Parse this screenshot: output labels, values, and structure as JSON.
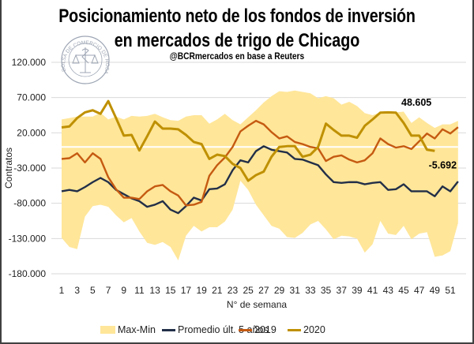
{
  "title_line1": "Posicionamiento neto de los fondos de inversión",
  "title_line2": "en mercados de trigo de Chicago",
  "subtitle": "@BCRmercados  en base a Reuters",
  "logo_text": "BOLSA DE COMERCIO DE ROSARIO",
  "colors": {
    "band": "#FFE699",
    "promedio": "#222F48",
    "y2019": "#C55A11",
    "y2020": "#BF9000",
    "zero_line": "#FFFFFF",
    "grid": "#D9D9D9",
    "frame": "#404040"
  },
  "chart_data": {
    "type": "line",
    "title": "Posicionamiento neto de los fondos de inversión en mercados de trigo de Chicago",
    "subtitle": "@BCRmercados  en base a Reuters",
    "xlabel": "N° de semana",
    "ylabel": "Contratos",
    "x": [
      1,
      2,
      3,
      4,
      5,
      6,
      7,
      8,
      9,
      10,
      11,
      12,
      13,
      14,
      15,
      16,
      17,
      18,
      19,
      20,
      21,
      22,
      23,
      24,
      25,
      26,
      27,
      28,
      29,
      30,
      31,
      32,
      33,
      34,
      35,
      36,
      37,
      38,
      39,
      40,
      41,
      42,
      43,
      44,
      45,
      46,
      47,
      48,
      49,
      50,
      51,
      52
    ],
    "x_tick_labels": [
      "1",
      "3",
      "5",
      "7",
      "9",
      "11",
      "13",
      "15",
      "17",
      "19",
      "21",
      "23",
      "25",
      "27",
      "29",
      "31",
      "33",
      "35",
      "37",
      "39",
      "41",
      "43",
      "45",
      "47",
      "49",
      "51"
    ],
    "ylim": [
      -180000,
      120000
    ],
    "y_ticks": [
      120000,
      70000,
      20000,
      -30000,
      -80000,
      -130000,
      -180000
    ],
    "y_tick_labels": [
      "120.000",
      "70.000",
      "20.000",
      "-30.000",
      "-80.000",
      "-130.000",
      "-180.000"
    ],
    "grid": true,
    "legend_position": "bottom",
    "band": {
      "name": "Max-Min",
      "upper": [
        39000,
        41000,
        43000,
        43000,
        43000,
        48500,
        39000,
        43000,
        39000,
        44000,
        43000,
        44000,
        47000,
        42000,
        38000,
        37000,
        43000,
        45000,
        45000,
        33000,
        39000,
        47000,
        38000,
        32000,
        42000,
        52000,
        63000,
        72000,
        79000,
        78000,
        80000,
        78000,
        76000,
        69000,
        72000,
        69000,
        60000,
        64000,
        58000,
        48000,
        45000,
        49000,
        49000,
        49000,
        50000,
        34000,
        42000,
        34000,
        27000,
        32000,
        32000,
        37000
      ],
      "lower": [
        -129000,
        -142000,
        -145000,
        -99000,
        -84000,
        -82000,
        -85000,
        -97000,
        -107000,
        -101000,
        -120000,
        -136000,
        -139000,
        -135000,
        -142000,
        -161000,
        -126000,
        -112000,
        -120000,
        -114000,
        -114000,
        -106000,
        -89000,
        -48000,
        -61000,
        -82000,
        -97000,
        -112000,
        -116000,
        -128000,
        -129000,
        -122000,
        -110000,
        -105000,
        -117000,
        -131000,
        -126000,
        -127000,
        -130000,
        -150000,
        -138000,
        -105000,
        -123000,
        -125000,
        -112000,
        -131000,
        -123000,
        -121000,
        -156000,
        -154000,
        -148000,
        -108000
      ]
    },
    "series": [
      {
        "name": "Promedio últ. 5 años",
        "key": "promedio",
        "values": [
          -63000,
          -61000,
          -63000,
          -57000,
          -50000,
          -44000,
          -50000,
          -61000,
          -67000,
          -73000,
          -77000,
          -85000,
          -82000,
          -77000,
          -89000,
          -94000,
          -84000,
          -72000,
          -76000,
          -60000,
          -59000,
          -53000,
          -33000,
          -19000,
          -22000,
          -6000,
          1000,
          -4000,
          -6000,
          -8000,
          -17000,
          -18000,
          -22000,
          -26000,
          -39000,
          -50000,
          -51000,
          -50000,
          -50000,
          -53000,
          -51000,
          -50000,
          -61000,
          -60000,
          -53000,
          -63000,
          -63000,
          -63000,
          -70000,
          -56000,
          -63000,
          -49000
        ]
      },
      {
        "name": "2019",
        "key": "y2019",
        "values": [
          -17000,
          -16000,
          -9000,
          -22000,
          -9000,
          -17000,
          -43000,
          -60000,
          -72000,
          -72000,
          -74000,
          -63000,
          -56000,
          -54000,
          -63000,
          -69000,
          -83000,
          -82000,
          -78000,
          -41000,
          -26000,
          -15000,
          0,
          22000,
          30000,
          37000,
          32000,
          21000,
          12000,
          15000,
          7000,
          4000,
          0,
          -2000,
          -20000,
          -14000,
          -12000,
          -18000,
          -22000,
          -19000,
          -9000,
          12000,
          4000,
          -1000,
          1000,
          -3000,
          8000,
          19000,
          12000,
          25000,
          19000,
          28000
        ]
      },
      {
        "name": "2020",
        "key": "y2020",
        "values": [
          27600,
          29000,
          41000,
          49000,
          52000,
          47000,
          65000,
          41000,
          16000,
          17000,
          -5000,
          15000,
          36000,
          26000,
          26000,
          25000,
          17000,
          7000,
          4000,
          -17000,
          -11000,
          -13000,
          -24000,
          -30000,
          -48000,
          -40000,
          -35000,
          -14000,
          0,
          1000,
          1000,
          -14000,
          -11000,
          0,
          33000,
          24000,
          16000,
          16000,
          13000,
          30000,
          39000,
          48600,
          49000,
          48605,
          34000,
          16000,
          16000,
          -4000,
          -5692
        ]
      }
    ],
    "annotations": [
      {
        "text": "48.605",
        "series": "2020",
        "week": 44
      },
      {
        "text": "-5.692",
        "series": "2020",
        "week": 49
      }
    ]
  },
  "legend": [
    {
      "label": "Max-Min",
      "kind": "area",
      "key": "band"
    },
    {
      "label": "Promedio últ. 5 años",
      "kind": "line",
      "key": "promedio"
    },
    {
      "label": "2019",
      "kind": "line",
      "key": "y2019"
    },
    {
      "label": "2020",
      "kind": "line",
      "key": "y2020"
    }
  ]
}
